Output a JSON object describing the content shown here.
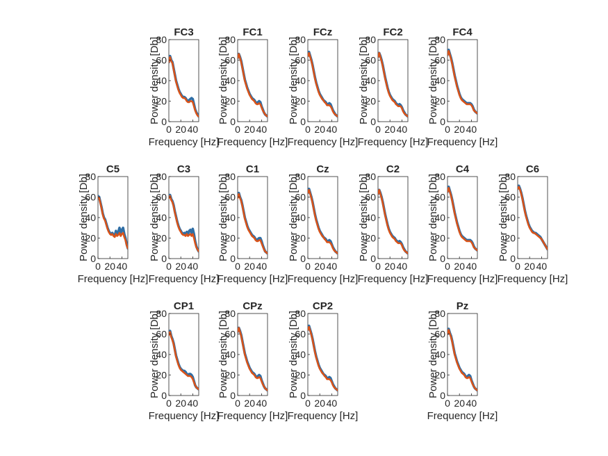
{
  "colors": {
    "series_1": "#2f6ea5",
    "series_2": "#d95319",
    "axis": "#262626",
    "background": "#ffffff"
  },
  "chart_data": {
    "type": "line",
    "layout": "3 rows of subplots: row1 FC3 FC1 FCz FC2 FC4; row2 C5 C3 C1 Cz C2 C4 C6; row3 CP1 CPz CP2 Pz",
    "xlabel": "Frequency [Hz]",
    "ylabel": "Power density [Db]",
    "xlim": [
      0,
      50
    ],
    "ylim": [
      0,
      80
    ],
    "xticks": [
      0,
      20,
      40
    ],
    "yticks": [
      0,
      20,
      40,
      60,
      80
    ],
    "grid": false,
    "legend": "none",
    "x": [
      0,
      2,
      4,
      6,
      8,
      10,
      12,
      14,
      16,
      18,
      20,
      22,
      24,
      26,
      28,
      30,
      32,
      34,
      36,
      38,
      40,
      42,
      44,
      46,
      48,
      50
    ],
    "subplots": [
      {
        "title": "FC3",
        "series": [
          {
            "values": [
              58,
              64,
              60,
              58,
              52,
              46,
              40,
              36,
              32,
              29,
              27,
              25,
              24,
              24,
              23,
              21,
              20,
              21,
              22,
              23,
              22,
              17,
              12,
              9,
              7,
              5
            ]
          },
          {
            "values": [
              58,
              63,
              59,
              57,
              51,
              45,
              39,
              35,
              31,
              28,
              26,
              24,
              23,
              23,
              22,
              20,
              19,
              19,
              20,
              20,
              19,
              15,
              11,
              8,
              6,
              5
            ]
          }
        ]
      },
      {
        "title": "FC1",
        "series": [
          {
            "values": [
              62,
              66,
              63,
              59,
              53,
              47,
              41,
              37,
              33,
              30,
              27,
              25,
              23,
              22,
              21,
              19,
              18,
              19,
              20,
              19,
              15,
              12,
              9,
              7,
              6,
              5
            ]
          },
          {
            "values": [
              62,
              66,
              62,
              58,
              52,
              46,
              40,
              36,
              32,
              29,
              26,
              24,
              22,
              21,
              20,
              18,
              17,
              17,
              18,
              17,
              14,
              11,
              9,
              7,
              6,
              5
            ]
          }
        ]
      },
      {
        "title": "FCz",
        "series": [
          {
            "values": [
              64,
              68,
              64,
              60,
              55,
              49,
              43,
              38,
              34,
              30,
              27,
              25,
              23,
              21,
              20,
              19,
              17,
              17,
              18,
              17,
              14,
              11,
              9,
              7,
              6,
              5
            ]
          },
          {
            "values": [
              64,
              67,
              63,
              59,
              54,
              48,
              42,
              37,
              33,
              29,
              26,
              24,
              22,
              21,
              19,
              18,
              16,
              16,
              16,
              15,
              13,
              10,
              8,
              7,
              6,
              5
            ]
          }
        ]
      },
      {
        "title": "FC2",
        "series": [
          {
            "values": [
              63,
              67,
              64,
              60,
              55,
              49,
              43,
              38,
              33,
              29,
              26,
              24,
              22,
              21,
              20,
              18,
              17,
              16,
              17,
              16,
              14,
              11,
              9,
              7,
              6,
              5
            ]
          },
          {
            "values": [
              63,
              67,
              63,
              59,
              54,
              48,
              42,
              37,
              32,
              28,
              25,
              23,
              21,
              20,
              19,
              17,
              16,
              15,
              15,
              15,
              13,
              10,
              8,
              7,
              6,
              5
            ]
          }
        ]
      },
      {
        "title": "FC4",
        "series": [
          {
            "values": [
              65,
              70,
              66,
              62,
              57,
              51,
              45,
              40,
              35,
              31,
              27,
              24,
              22,
              21,
              20,
              19,
              18,
              18,
              18,
              18,
              17,
              15,
              12,
              10,
              9,
              8
            ]
          },
          {
            "values": [
              65,
              69,
              65,
              61,
              56,
              50,
              44,
              39,
              34,
              30,
              26,
              23,
              21,
              20,
              19,
              18,
              17,
              17,
              17,
              17,
              16,
              14,
              11,
              10,
              9,
              8
            ]
          }
        ]
      },
      {
        "title": "C5",
        "series": [
          {
            "values": [
              61,
              60,
              55,
              50,
              44,
              40,
              38,
              34,
              30,
              27,
              25,
              24,
              25,
              23,
              22,
              27,
              23,
              26,
              30,
              25,
              28,
              30,
              24,
              20,
              14,
              10
            ]
          },
          {
            "values": [
              60,
              59,
              54,
              49,
              43,
              39,
              37,
              33,
              29,
              26,
              24,
              23,
              24,
              22,
              21,
              24,
              22,
              23,
              25,
              22,
              24,
              25,
              21,
              18,
              13,
              10
            ]
          }
        ]
      },
      {
        "title": "C3",
        "series": [
          {
            "values": [
              60,
              62,
              58,
              56,
              52,
              46,
              41,
              36,
              32,
              29,
              27,
              25,
              24,
              25,
              24,
              26,
              24,
              27,
              28,
              25,
              29,
              24,
              17,
              12,
              9,
              7
            ]
          },
          {
            "values": [
              59,
              61,
              57,
              55,
              51,
              45,
              40,
              35,
              31,
              28,
              26,
              24,
              23,
              23,
              22,
              24,
              22,
              23,
              24,
              22,
              24,
              20,
              15,
              11,
              9,
              7
            ]
          }
        ]
      },
      {
        "title": "C1",
        "series": [
          {
            "values": [
              60,
              64,
              60,
              57,
              52,
              46,
              40,
              36,
              32,
              29,
              27,
              25,
              23,
              22,
              21,
              19,
              18,
              19,
              20,
              20,
              17,
              13,
              10,
              7,
              6,
              5
            ]
          },
          {
            "values": [
              59,
              63,
              59,
              56,
              51,
              45,
              39,
              35,
              31,
              28,
              26,
              24,
              22,
              21,
              20,
              18,
              17,
              17,
              18,
              18,
              15,
              12,
              9,
              7,
              6,
              5
            ]
          }
        ]
      },
      {
        "title": "Cz",
        "series": [
          {
            "values": [
              64,
              68,
              64,
              60,
              55,
              49,
              43,
              38,
              34,
              30,
              27,
              25,
              23,
              21,
              20,
              19,
              17,
              17,
              18,
              17,
              14,
              11,
              9,
              7,
              6,
              5
            ]
          },
          {
            "values": [
              64,
              67,
              63,
              59,
              54,
              48,
              42,
              37,
              33,
              29,
              26,
              24,
              22,
              21,
              19,
              18,
              16,
              16,
              16,
              15,
              13,
              10,
              8,
              7,
              6,
              5
            ]
          }
        ]
      },
      {
        "title": "C2",
        "series": [
          {
            "values": [
              63,
              67,
              64,
              60,
              55,
              49,
              43,
              38,
              33,
              29,
              26,
              24,
              22,
              21,
              20,
              18,
              17,
              16,
              17,
              16,
              14,
              11,
              9,
              7,
              6,
              5
            ]
          },
          {
            "values": [
              63,
              67,
              63,
              59,
              54,
              48,
              42,
              37,
              32,
              28,
              25,
              23,
              21,
              20,
              19,
              17,
              16,
              15,
              15,
              15,
              13,
              10,
              8,
              7,
              6,
              5
            ]
          }
        ]
      },
      {
        "title": "C4",
        "series": [
          {
            "values": [
              65,
              70,
              66,
              62,
              57,
              51,
              45,
              40,
              35,
              31,
              27,
              24,
              22,
              21,
              20,
              19,
              18,
              18,
              18,
              18,
              17,
              15,
              12,
              10,
              9,
              8
            ]
          },
          {
            "values": [
              65,
              69,
              65,
              61,
              56,
              50,
              44,
              39,
              34,
              30,
              26,
              23,
              21,
              20,
              19,
              18,
              17,
              17,
              17,
              17,
              16,
              14,
              11,
              10,
              9,
              8
            ]
          }
        ]
      },
      {
        "title": "C6",
        "series": [
          {
            "values": [
              68,
              71,
              68,
              64,
              59,
              53,
              47,
              42,
              38,
              34,
              31,
              29,
              27,
              26,
              25,
              25,
              24,
              23,
              22,
              21,
              19,
              17,
              15,
              13,
              11,
              9
            ]
          },
          {
            "values": [
              68,
              70,
              67,
              63,
              58,
              52,
              46,
              41,
              37,
              33,
              30,
              28,
              26,
              25,
              25,
              24,
              23,
              22,
              21,
              20,
              19,
              17,
              15,
              13,
              11,
              9
            ]
          }
        ]
      },
      {
        "title": "CP1",
        "series": [
          {
            "values": [
              60,
              63,
              58,
              55,
              51,
              45,
              39,
              35,
              31,
              28,
              26,
              25,
              24,
              24,
              23,
              21,
              20,
              21,
              21,
              20,
              18,
              14,
              10,
              8,
              7,
              6
            ]
          },
          {
            "values": [
              59,
              62,
              57,
              54,
              50,
              44,
              38,
              34,
              30,
              27,
              25,
              24,
              23,
              22,
              21,
              20,
              19,
              19,
              19,
              18,
              16,
              13,
              10,
              8,
              7,
              6
            ]
          }
        ]
      },
      {
        "title": "CPz",
        "series": [
          {
            "values": [
              62,
              66,
              63,
              59,
              53,
              47,
              41,
              37,
              33,
              30,
              27,
              25,
              23,
              22,
              21,
              19,
              18,
              19,
              20,
              19,
              15,
              12,
              9,
              7,
              6,
              5
            ]
          },
          {
            "values": [
              62,
              66,
              62,
              58,
              52,
              46,
              40,
              36,
              32,
              29,
              26,
              24,
              22,
              21,
              20,
              18,
              17,
              17,
              18,
              17,
              14,
              11,
              9,
              7,
              6,
              5
            ]
          }
        ]
      },
      {
        "title": "CP2",
        "series": [
          {
            "values": [
              64,
              68,
              64,
              60,
              55,
              49,
              43,
              38,
              34,
              30,
              27,
              25,
              23,
              21,
              20,
              19,
              17,
              17,
              18,
              17,
              14,
              11,
              9,
              7,
              6,
              5
            ]
          },
          {
            "values": [
              64,
              67,
              63,
              59,
              54,
              48,
              42,
              37,
              33,
              29,
              26,
              24,
              22,
              21,
              19,
              18,
              16,
              16,
              16,
              15,
              13,
              10,
              8,
              7,
              6,
              5
            ]
          }
        ]
      },
      {
        "title": "Pz",
        "series": [
          {
            "values": [
              60,
              65,
              61,
              58,
              53,
              47,
              41,
              37,
              33,
              30,
              27,
              25,
              23,
              22,
              21,
              19,
              18,
              19,
              20,
              19,
              15,
              12,
              9,
              7,
              6,
              5
            ]
          },
          {
            "values": [
              60,
              64,
              60,
              57,
              52,
              46,
              40,
              36,
              32,
              29,
              26,
              24,
              22,
              21,
              20,
              18,
              17,
              17,
              18,
              17,
              14,
              11,
              9,
              7,
              6,
              5
            ]
          }
        ]
      }
    ]
  }
}
